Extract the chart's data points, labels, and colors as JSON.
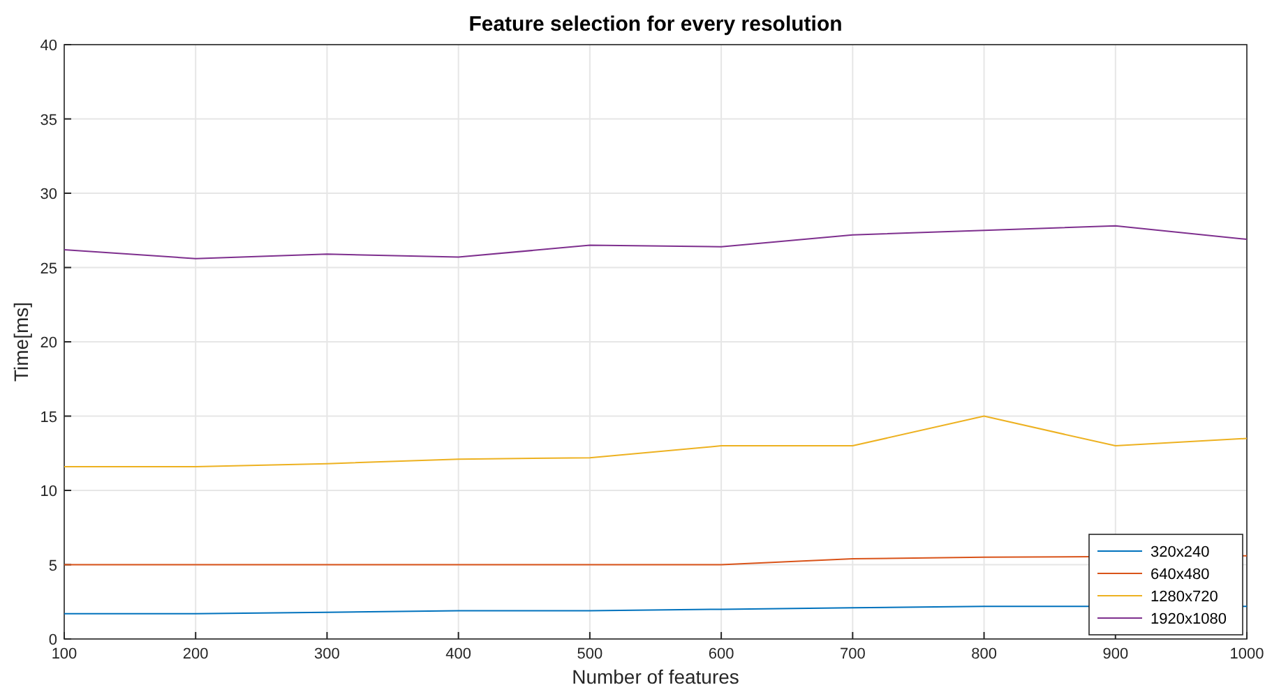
{
  "chart_data": {
    "type": "line",
    "title": "Feature selection for every resolution",
    "xlabel": "Number of features",
    "ylabel": "Time[ms]",
    "x": [
      100,
      200,
      300,
      400,
      500,
      600,
      700,
      800,
      900,
      1000
    ],
    "series": [
      {
        "name": "320x240",
        "color": "#0072bd",
        "values": [
          1.7,
          1.7,
          1.8,
          1.9,
          1.9,
          2.0,
          2.1,
          2.2,
          null,
          2.2
        ]
      },
      {
        "name": "640x480",
        "color": "#d95319",
        "values": [
          5.0,
          5.0,
          5.0,
          5.0,
          5.0,
          5.0,
          5.4,
          5.5,
          null,
          5.6
        ]
      },
      {
        "name": "1280x720",
        "color": "#edb120",
        "values": [
          11.6,
          11.6,
          11.8,
          12.1,
          12.2,
          13.0,
          13.0,
          15.0,
          13.0,
          13.5
        ]
      },
      {
        "name": "1920x1080",
        "color": "#7e2f8e",
        "values": [
          26.2,
          25.6,
          25.9,
          25.7,
          26.5,
          26.4,
          27.2,
          27.5,
          27.8,
          26.9
        ]
      }
    ],
    "xlim": [
      100,
      1000
    ],
    "xticks": [
      100,
      200,
      300,
      400,
      500,
      600,
      700,
      800,
      900,
      1000
    ],
    "ylim": [
      0,
      40
    ],
    "yticks": [
      0,
      5,
      10,
      15,
      20,
      25,
      30,
      35,
      40
    ],
    "grid": true,
    "legend": "bottom right",
    "marker": "none",
    "line_style": "solid"
  }
}
